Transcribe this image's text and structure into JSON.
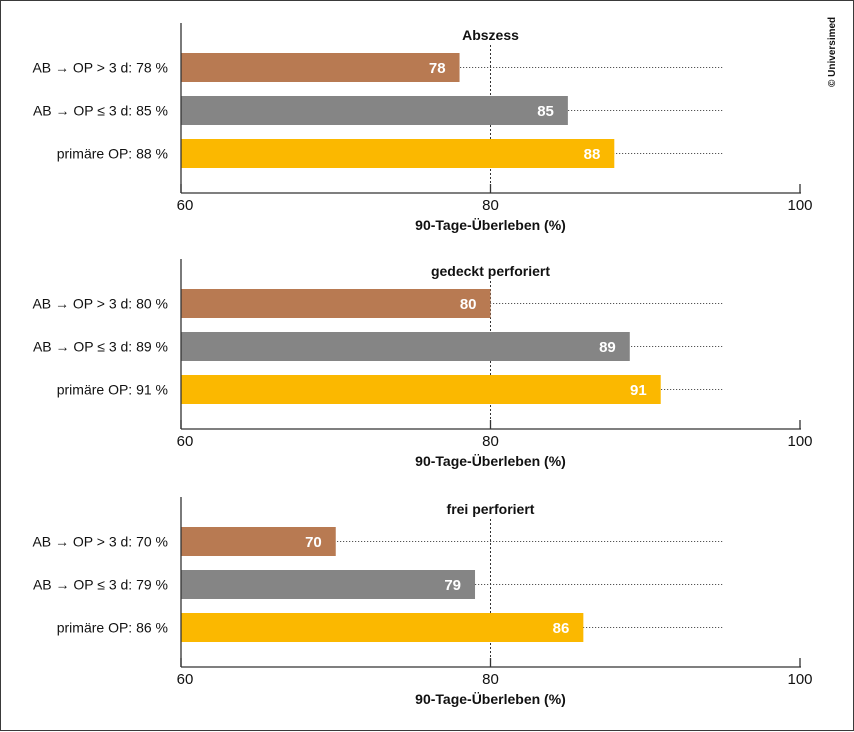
{
  "copyright": "© Universimed",
  "colors": {
    "AB → OP > 3 d": "#b87a52",
    "AB → OP ≤ 3 d": "#858585",
    "primäre OP": "#fbb800"
  },
  "chart_data": [
    {
      "type": "bar",
      "orientation": "horizontal",
      "title": "Abszess",
      "xlabel": "90-Tage-Überleben (%)",
      "xlim": [
        60,
        100
      ],
      "xticks": [
        60,
        80,
        100
      ],
      "reference_line": 80,
      "categories": [
        "AB → OP > 3 d: 78 %",
        "AB → OP ≤ 3 d: 85 %",
        "primäre OP: 88 %"
      ],
      "values": [
        78,
        85,
        88
      ]
    },
    {
      "type": "bar",
      "orientation": "horizontal",
      "title": "gedeckt perforiert",
      "xlabel": "90-Tage-Überleben (%)",
      "xlim": [
        60,
        100
      ],
      "xticks": [
        60,
        80,
        100
      ],
      "reference_line": 80,
      "categories": [
        "AB → OP > 3 d: 80 %",
        "AB → OP ≤ 3 d: 89 %",
        "primäre OP: 91 %"
      ],
      "values": [
        80,
        89,
        91
      ]
    },
    {
      "type": "bar",
      "orientation": "horizontal",
      "title": "frei perforiert",
      "xlabel": "90-Tage-Überleben (%)",
      "xlim": [
        60,
        100
      ],
      "xticks": [
        60,
        80,
        100
      ],
      "reference_line": 80,
      "categories": [
        "AB → OP > 3 d: 70 %",
        "AB → OP ≤ 3 d: 79 %",
        "primäre OP: 86 %"
      ],
      "values": [
        70,
        79,
        86
      ]
    }
  ]
}
